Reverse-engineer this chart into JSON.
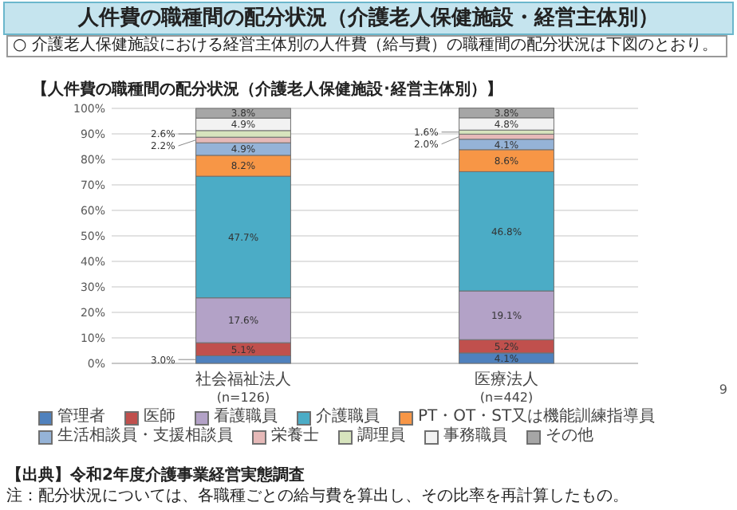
{
  "chart_data": {
    "type": "bar",
    "stacked": true,
    "title": "人件費の職種間の配分状況（介護老人保健施設・経営主体別）",
    "subtitle": "○ 介護老人保健施設における経営主体別の人件費（給与費）の職種間の配分状況は下図のとおり。",
    "annotations": [
      "【人件費の職種間の配分状況（介護老人保健施設･経営主体別）】",
      "【出典】令和2年度介護事業経営実態調査",
      "注：配分状況については、各職種ごとの給与費を算出し、その比率を再計算したもの。",
      "9"
    ],
    "categories": [
      "社会福祉法人\n(n=126)",
      "医療法人\n(n=442)"
    ],
    "ylim": [
      0,
      100
    ],
    "yticks": [
      {
        "value": 0,
        "label": "0%"
      },
      {
        "value": 10,
        "label": "10%"
      },
      {
        "value": 20,
        "label": "20%"
      },
      {
        "value": 30,
        "label": "30%"
      },
      {
        "value": 40,
        "label": "40%"
      },
      {
        "value": 50,
        "label": "50%"
      },
      {
        "value": 60,
        "label": "60%"
      },
      {
        "value": 70,
        "label": "70%"
      },
      {
        "value": 80,
        "label": "80%"
      },
      {
        "value": 90,
        "label": "90%"
      },
      {
        "value": 100,
        "label": "100%"
      }
    ],
    "grid": "y",
    "legend": "bottom",
    "series": [
      {
        "name": "管理者",
        "color": "#4f81bd",
        "values": [
          3.0,
          4.1
        ],
        "value_labels": [
          "3.0%",
          "4.1%"
        ]
      },
      {
        "name": "医師",
        "color": "#c0504d",
        "values": [
          5.1,
          5.2
        ],
        "value_labels": [
          "5.1%",
          "5.2%"
        ]
      },
      {
        "name": "看護職員",
        "color": "#b3a2c7",
        "values": [
          17.6,
          19.1
        ],
        "value_labels": [
          "17.6%",
          "19.1%"
        ]
      },
      {
        "name": "介護職員",
        "color": "#4bacc6",
        "values": [
          47.7,
          46.8
        ],
        "value_labels": [
          "47.7%",
          "46.8%"
        ]
      },
      {
        "name": "PT・OT・ST又は機能訓練指導員",
        "color": "#f79646",
        "values": [
          8.2,
          8.6
        ],
        "value_labels": [
          "8.2%",
          "8.6%"
        ]
      },
      {
        "name": "生活相談員・支援相談員",
        "color": "#95b3d7",
        "values": [
          4.9,
          4.1
        ],
        "value_labels": [
          "4.9%",
          "4.1%"
        ]
      },
      {
        "name": "栄養士",
        "color": "#e6b9b8",
        "values": [
          2.2,
          2.0
        ],
        "value_labels": [
          "2.2%",
          "2.0%"
        ]
      },
      {
        "name": "調理員",
        "color": "#d7e4bd",
        "values": [
          2.6,
          1.6
        ],
        "value_labels": [
          "2.6%",
          "1.6%"
        ]
      },
      {
        "name": "事務職員",
        "color": "#f2f2f2",
        "values": [
          4.9,
          4.8
        ],
        "value_labels": [
          "4.9%",
          "4.8%"
        ]
      },
      {
        "name": "その他",
        "color": "#a6a6a6",
        "values": [
          3.8,
          3.8
        ],
        "value_labels": [
          "3.8%",
          "3.8%"
        ]
      }
    ]
  }
}
